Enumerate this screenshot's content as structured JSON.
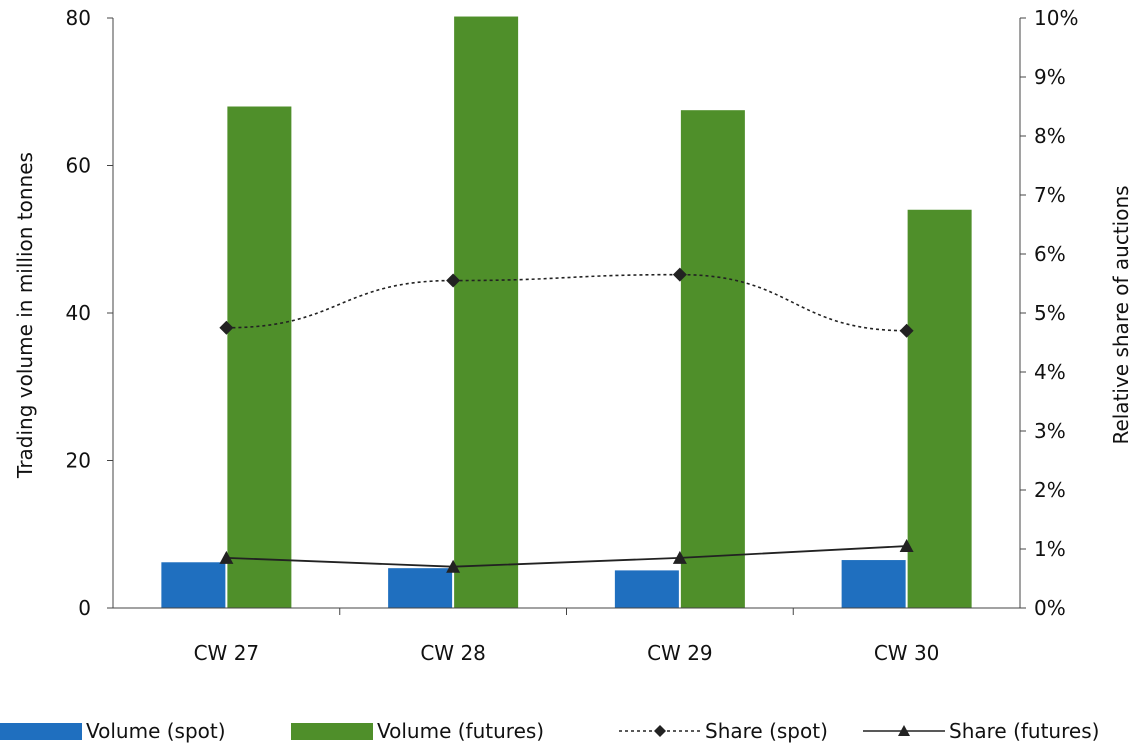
{
  "chart_data": {
    "type": "bar",
    "categories": [
      "CW 27",
      "CW 28",
      "CW 29",
      "CW 30"
    ],
    "series": [
      {
        "name": "Volume (spot)",
        "kind": "bar",
        "axis": "left",
        "color": "#1f6fbf",
        "values": [
          6.2,
          5.4,
          5.1,
          6.5
        ]
      },
      {
        "name": "Volume (futures)",
        "kind": "bar",
        "axis": "left",
        "color": "#4f8f2a",
        "values": [
          68,
          80.2,
          67.5,
          54
        ]
      },
      {
        "name": "Share (spot)",
        "kind": "line",
        "axis": "right",
        "color": "#222222",
        "line_style": "dotted",
        "marker": "diamond",
        "values": [
          4.75,
          5.55,
          5.65,
          4.7
        ]
      },
      {
        "name": "Share (futures)",
        "kind": "line",
        "axis": "right",
        "color": "#222222",
        "line_style": "solid",
        "marker": "triangle",
        "values": [
          0.85,
          0.7,
          0.85,
          1.05
        ]
      }
    ],
    "ylabel": "Trading volume in million tonnes",
    "y2label": "Relative share of auctions",
    "ylim": [
      0,
      80
    ],
    "y_ticks": [
      0,
      20,
      40,
      60,
      80
    ],
    "y2lim": [
      0,
      10
    ],
    "y2_ticks": [
      "0%",
      "1%",
      "2%",
      "3%",
      "4%",
      "5%",
      "6%",
      "7%",
      "8%",
      "9%",
      "10%"
    ],
    "grid": false,
    "legend_position": "bottom"
  }
}
